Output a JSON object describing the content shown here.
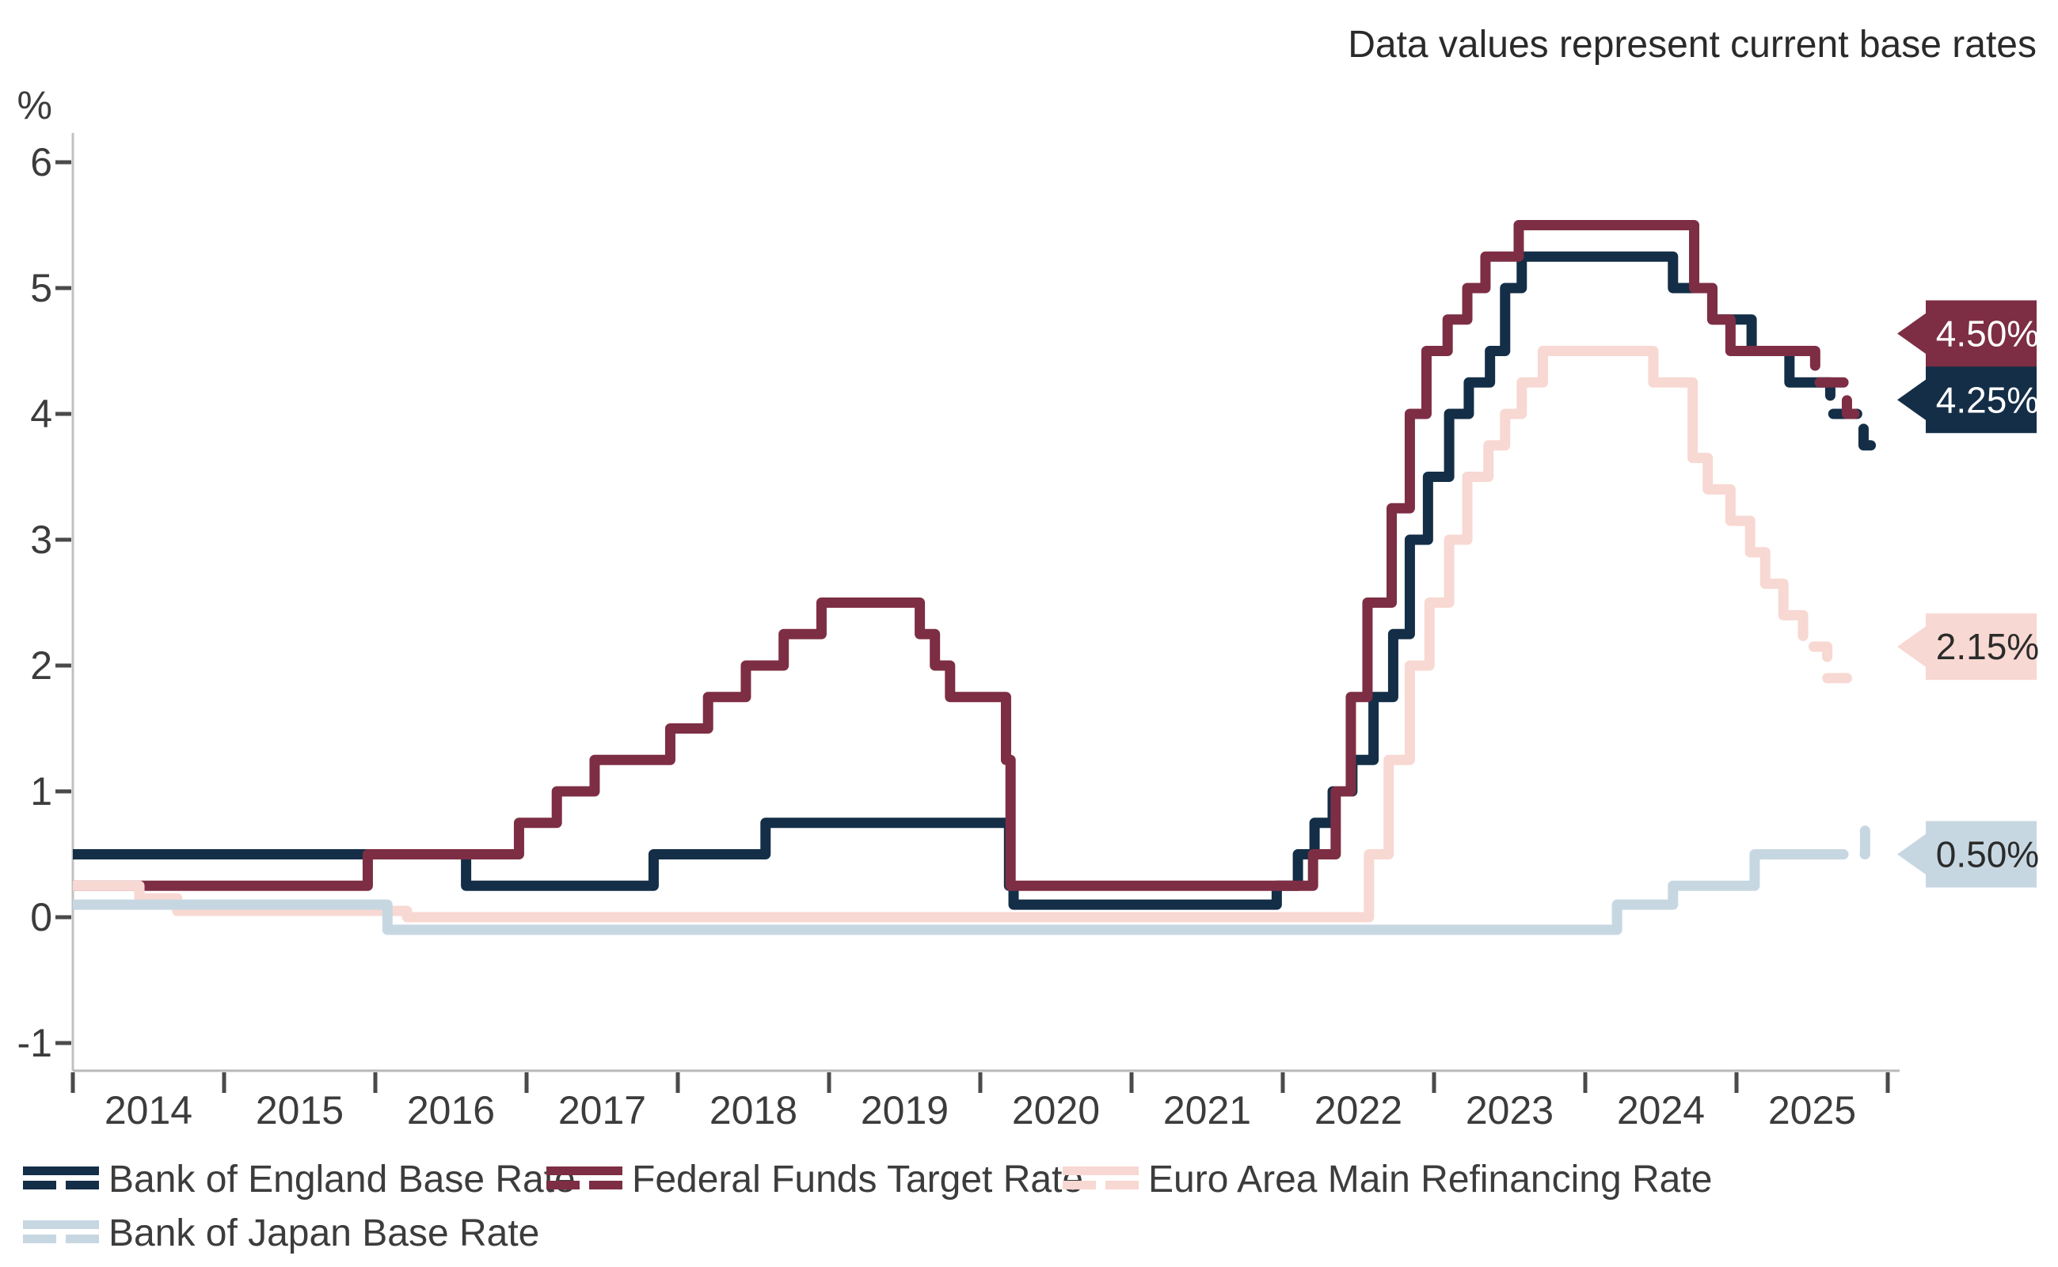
{
  "title": "Data values represent current base rates",
  "y_axis": {
    "unit": "%",
    "ticks": [
      6,
      5,
      4,
      3,
      2,
      1,
      0,
      -1
    ]
  },
  "x_axis": {
    "years": [
      "2014",
      "2015",
      "2016",
      "2017",
      "2018",
      "2019",
      "2020",
      "2021",
      "2022",
      "2023",
      "2024",
      "2025"
    ]
  },
  "legend": {
    "rows": [
      [
        "boe",
        "fed",
        "ecb"
      ],
      [
        "boj"
      ]
    ]
  },
  "chart_data": {
    "type": "line",
    "step": true,
    "note": "Data values represent current base rates",
    "ylabel": "%",
    "x_range": [
      2014.0,
      2026.05
    ],
    "y_range": [
      -1,
      6
    ],
    "grid": false,
    "legend_position": "bottom",
    "series": [
      {
        "id": "boe",
        "name": "Bank of England Base Rate",
        "color": "#142e47",
        "label_text_color": "#ffffff",
        "current_value": "4.25%",
        "current_value_num": 4.25,
        "dash_from": 2025.55,
        "end": 2025.9,
        "points": [
          [
            2014.0,
            0.5
          ],
          [
            2016.6,
            0.25
          ],
          [
            2017.84,
            0.5
          ],
          [
            2018.58,
            0.75
          ],
          [
            2020.19,
            0.25
          ],
          [
            2020.22,
            0.1
          ],
          [
            2021.96,
            0.25
          ],
          [
            2022.1,
            0.5
          ],
          [
            2022.21,
            0.75
          ],
          [
            2022.33,
            1.0
          ],
          [
            2022.46,
            1.25
          ],
          [
            2022.6,
            1.75
          ],
          [
            2022.73,
            2.25
          ],
          [
            2022.84,
            3.0
          ],
          [
            2022.96,
            3.5
          ],
          [
            2023.1,
            4.0
          ],
          [
            2023.23,
            4.25
          ],
          [
            2023.37,
            4.5
          ],
          [
            2023.47,
            5.0
          ],
          [
            2023.58,
            5.25
          ],
          [
            2024.58,
            5.0
          ],
          [
            2024.84,
            4.75
          ],
          [
            2025.1,
            4.5
          ],
          [
            2025.35,
            4.25
          ],
          [
            2025.62,
            4.0
          ],
          [
            2025.84,
            3.75
          ]
        ]
      },
      {
        "id": "fed",
        "name": "Federal Funds Target Rate",
        "color": "#7d2e44",
        "label_text_color": "#ffffff",
        "current_value": "4.50%",
        "current_value_num": 4.5,
        "dash_from": 2025.46,
        "end": 2025.78,
        "points": [
          [
            2014.0,
            0.25
          ],
          [
            2015.95,
            0.5
          ],
          [
            2016.95,
            0.75
          ],
          [
            2017.2,
            1.0
          ],
          [
            2017.45,
            1.25
          ],
          [
            2017.95,
            1.5
          ],
          [
            2018.2,
            1.75
          ],
          [
            2018.45,
            2.0
          ],
          [
            2018.7,
            2.25
          ],
          [
            2018.95,
            2.5
          ],
          [
            2019.6,
            2.25
          ],
          [
            2019.7,
            2.0
          ],
          [
            2019.8,
            1.75
          ],
          [
            2020.17,
            1.25
          ],
          [
            2020.2,
            0.25
          ],
          [
            2022.2,
            0.5
          ],
          [
            2022.35,
            1.0
          ],
          [
            2022.45,
            1.75
          ],
          [
            2022.56,
            2.5
          ],
          [
            2022.72,
            3.25
          ],
          [
            2022.84,
            4.0
          ],
          [
            2022.95,
            4.5
          ],
          [
            2023.09,
            4.75
          ],
          [
            2023.22,
            5.0
          ],
          [
            2023.34,
            5.25
          ],
          [
            2023.56,
            5.5
          ],
          [
            2024.72,
            5.0
          ],
          [
            2024.84,
            4.75
          ],
          [
            2024.96,
            4.5
          ],
          [
            2025.52,
            4.25
          ],
          [
            2025.73,
            4.0
          ]
        ]
      },
      {
        "id": "ecb",
        "name": "Euro Area Main Refinancing Rate",
        "color": "#f8d8d2",
        "label_text_color": "#2b2b2b",
        "current_value": "2.15%",
        "current_value_num": 2.15,
        "dash_from": 2025.42,
        "end": 2025.73,
        "points": [
          [
            2014.0,
            0.25
          ],
          [
            2014.44,
            0.15
          ],
          [
            2014.69,
            0.05
          ],
          [
            2016.21,
            0.0
          ],
          [
            2022.57,
            0.5
          ],
          [
            2022.7,
            1.25
          ],
          [
            2022.84,
            2.0
          ],
          [
            2022.97,
            2.5
          ],
          [
            2023.1,
            3.0
          ],
          [
            2023.22,
            3.5
          ],
          [
            2023.36,
            3.75
          ],
          [
            2023.47,
            4.0
          ],
          [
            2023.58,
            4.25
          ],
          [
            2023.72,
            4.5
          ],
          [
            2024.45,
            4.25
          ],
          [
            2024.71,
            3.65
          ],
          [
            2024.81,
            3.4
          ],
          [
            2024.96,
            3.15
          ],
          [
            2025.09,
            2.9
          ],
          [
            2025.19,
            2.65
          ],
          [
            2025.31,
            2.4
          ],
          [
            2025.44,
            2.15
          ],
          [
            2025.6,
            1.9
          ]
        ]
      },
      {
        "id": "boj",
        "name": "Bank of Japan Base Rate",
        "color": "#c7d7e2",
        "label_text_color": "#2b2b2b",
        "current_value": "0.50%",
        "current_value_num": 0.5,
        "dash_from": 2025.55,
        "end": 2025.93,
        "points": [
          [
            2014.0,
            0.1
          ],
          [
            2016.08,
            -0.1
          ],
          [
            2024.21,
            0.1
          ],
          [
            2024.58,
            0.25
          ],
          [
            2025.12,
            0.5
          ],
          [
            2025.85,
            0.75
          ]
        ]
      }
    ]
  }
}
